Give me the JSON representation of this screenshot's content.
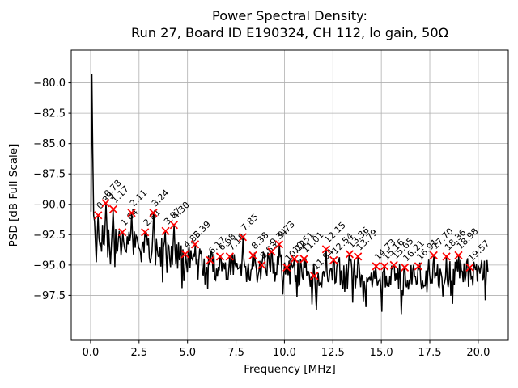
{
  "figure": {
    "background": "#ffffff"
  },
  "chart_data": {
    "type": "line",
    "title_line1": "Power Spectral Density:",
    "title_line2": "Run 27, Board ID E190324, CH 112, lo gain, 50Ω",
    "xlabel": "Frequency [MHz]",
    "ylabel": "PSD [dB Full Scale]",
    "xlim": [
      -1.0,
      21.55
    ],
    "ylim": [
      -101.2,
      -77.3
    ],
    "xticks": [
      0,
      2.5,
      5,
      7.5,
      10,
      12.5,
      15,
      17.5,
      20
    ],
    "xtick_labels": [
      "0.0",
      "2.5",
      "5.0",
      "7.5",
      "10.0",
      "12.5",
      "15.0",
      "17.5",
      "20.0"
    ],
    "yticks": [
      -80,
      -82.5,
      -85,
      -87.5,
      -90,
      -92.5,
      -95,
      -97.5
    ],
    "ytick_labels": [
      "−80.0",
      "−82.5",
      "−85.0",
      "−87.5",
      "−90.0",
      "−92.5",
      "−95.0",
      "−97.5"
    ],
    "grid": true,
    "grid_color": "#b0b0b0",
    "line_color": "#000000",
    "marker_style": "x",
    "marker_color": "#ff0000",
    "annotation_rotation_deg": 45,
    "dc_spike": {
      "freq": 0.066,
      "db": -79.3
    },
    "data_max_freq": 20.5,
    "noise_floor_trend": [
      [
        0.0,
        -92.6
      ],
      [
        0.5,
        -92.6
      ],
      [
        1.0,
        -93.0
      ],
      [
        2.0,
        -93.4
      ],
      [
        3.0,
        -93.6
      ],
      [
        4.0,
        -93.9
      ],
      [
        5.0,
        -94.5
      ],
      [
        6.0,
        -95.0
      ],
      [
        7.0,
        -95.0
      ],
      [
        8.0,
        -95.2
      ],
      [
        9.0,
        -95.2
      ],
      [
        10.0,
        -95.3
      ],
      [
        11.0,
        -95.6
      ],
      [
        12.0,
        -95.8
      ],
      [
        13.0,
        -95.5
      ],
      [
        14.0,
        -95.8
      ],
      [
        15.0,
        -96.1
      ],
      [
        16.0,
        -96.0
      ],
      [
        17.0,
        -95.8
      ],
      [
        18.0,
        -95.5
      ],
      [
        19.0,
        -95.6
      ],
      [
        20.5,
        -95.7
      ]
    ],
    "peaks": [
      {
        "freq": 0.39,
        "db": -90.9,
        "label": "0.39"
      },
      {
        "freq": 0.78,
        "db": -89.9,
        "label": "0.78"
      },
      {
        "freq": 1.17,
        "db": -90.4,
        "label": "1.17"
      },
      {
        "freq": 1.64,
        "db": -92.3,
        "label": "1.64"
      },
      {
        "freq": 2.11,
        "db": -90.7,
        "label": "2.11"
      },
      {
        "freq": 2.81,
        "db": -92.3,
        "label": "2.81"
      },
      {
        "freq": 3.24,
        "db": -90.7,
        "label": "3.24"
      },
      {
        "freq": 3.87,
        "db": -92.2,
        "label": "3.87"
      },
      {
        "freq": 4.3,
        "db": -91.7,
        "label": "4.30"
      },
      {
        "freq": 4.88,
        "db": -94.1,
        "label": "4.88"
      },
      {
        "freq": 5.39,
        "db": -93.3,
        "label": "5.39"
      },
      {
        "freq": 6.17,
        "db": -94.6,
        "label": "6.17"
      },
      {
        "freq": 6.68,
        "db": -94.3,
        "label": "6.68"
      },
      {
        "freq": 7.18,
        "db": -94.3,
        "label": "7.18"
      },
      {
        "freq": 7.85,
        "db": -92.7,
        "label": "7.85"
      },
      {
        "freq": 8.38,
        "db": -94.2,
        "label": "8.38"
      },
      {
        "freq": 8.83,
        "db": -95.0,
        "label": "8.83"
      },
      {
        "freq": 9.34,
        "db": -93.9,
        "label": "9.34"
      },
      {
        "freq": 9.73,
        "db": -93.3,
        "label": "9.73"
      },
      {
        "freq": 10.12,
        "db": -95.2,
        "label": "10.12"
      },
      {
        "freq": 10.51,
        "db": -94.5,
        "label": "10.51"
      },
      {
        "freq": 11.01,
        "db": -94.5,
        "label": "11.01"
      },
      {
        "freq": 11.54,
        "db": -95.9,
        "label": "11.54"
      },
      {
        "freq": 12.15,
        "db": -93.7,
        "label": "12.15"
      },
      {
        "freq": 12.54,
        "db": -94.6,
        "label": "12.54"
      },
      {
        "freq": 13.36,
        "db": -94.1,
        "label": "13.36"
      },
      {
        "freq": 13.79,
        "db": -94.3,
        "label": "13.79"
      },
      {
        "freq": 14.73,
        "db": -95.1,
        "label": "14.73"
      },
      {
        "freq": 15.16,
        "db": -95.1,
        "label": "15.16"
      },
      {
        "freq": 15.65,
        "db": -95.0,
        "label": "15.65"
      },
      {
        "freq": 16.21,
        "db": -95.2,
        "label": "16.21"
      },
      {
        "freq": 16.91,
        "db": -95.1,
        "label": "16.91"
      },
      {
        "freq": 17.7,
        "db": -94.2,
        "label": "17.70"
      },
      {
        "freq": 18.36,
        "db": -94.3,
        "label": "18.36"
      },
      {
        "freq": 18.98,
        "db": -94.2,
        "label": "18.98"
      },
      {
        "freq": 19.57,
        "db": -95.2,
        "label": "19.57"
      }
    ]
  }
}
